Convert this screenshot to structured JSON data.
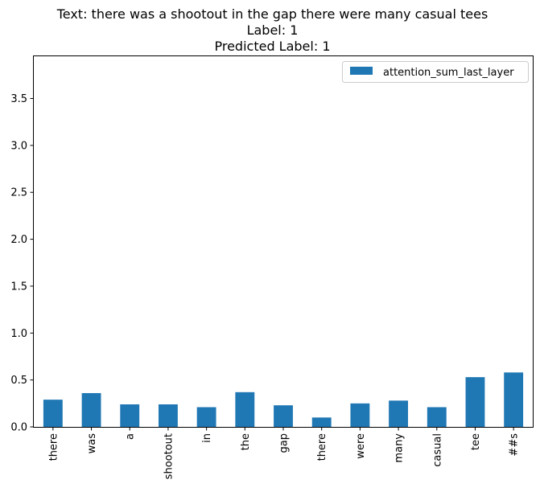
{
  "chart_data": {
    "type": "bar",
    "title_lines": [
      "Text: there was a shootout in the gap there were many casual tees",
      "Label: 1",
      "Predicted Label: 1"
    ],
    "xlabel": "",
    "ylabel": "",
    "categories": [
      "there",
      "was",
      "a",
      "shootout",
      "in",
      "the",
      "gap",
      "there",
      "were",
      "many",
      "casual",
      "tee",
      "##s"
    ],
    "series": [
      {
        "name": "attention_sum_last_layer",
        "color": "#1f77b4",
        "values": [
          0.29,
          0.36,
          0.24,
          0.24,
          0.21,
          0.37,
          0.23,
          0.1,
          0.25,
          0.28,
          0.21,
          0.53,
          0.58
        ]
      }
    ],
    "ylim": [
      0,
      3.95
    ],
    "yticks": [
      "0.0",
      "0.5",
      "1.0",
      "1.5",
      "2.0",
      "2.5",
      "3.0",
      "3.5"
    ],
    "legend_position": "top-right",
    "grid": false
  }
}
